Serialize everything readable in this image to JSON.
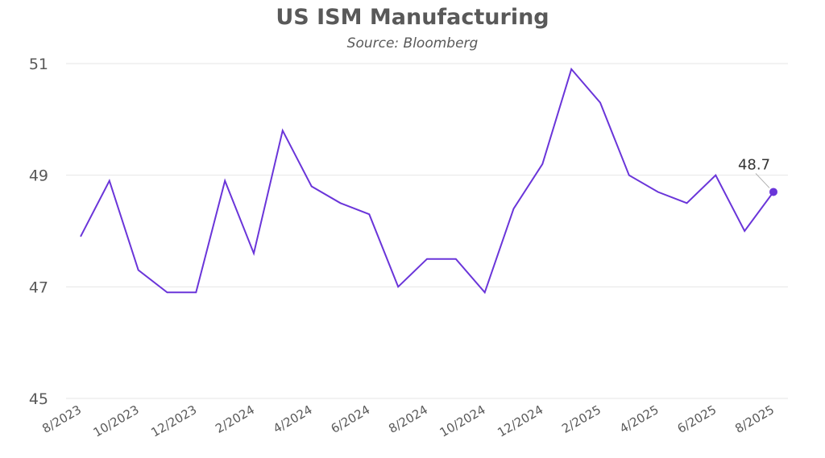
{
  "chart_data": {
    "type": "line",
    "title": "US ISM Manufacturing",
    "subtitle": "Source: Bloomberg",
    "xlabel": "",
    "ylabel": "",
    "ylim": [
      45,
      51
    ],
    "yticks": [
      45,
      47,
      49,
      51
    ],
    "grid": true,
    "legend": "none",
    "x": [
      "8/2023",
      "9/2023",
      "10/2023",
      "11/2023",
      "12/2023",
      "1/2024",
      "2/2024",
      "3/2024",
      "4/2024",
      "5/2024",
      "6/2024",
      "7/2024",
      "8/2024",
      "9/2024",
      "10/2024",
      "11/2024",
      "12/2024",
      "1/2025",
      "2/2025",
      "3/2025",
      "4/2025",
      "5/2025",
      "6/2025",
      "7/2025",
      "8/2025"
    ],
    "xtick_labels": [
      "8/2023",
      "10/2023",
      "12/2023",
      "2/2024",
      "4/2024",
      "6/2024",
      "8/2024",
      "10/2024",
      "12/2024",
      "2/2025",
      "4/2025",
      "6/2025",
      "8/2025"
    ],
    "series": [
      {
        "color": "#6a35d9",
        "values": [
          47.9,
          48.9,
          47.3,
          46.9,
          46.9,
          48.9,
          47.6,
          49.8,
          48.8,
          48.5,
          48.3,
          47.0,
          47.5,
          47.5,
          46.9,
          48.4,
          49.2,
          50.9,
          50.3,
          49.0,
          48.7,
          48.5,
          49.0,
          48.0,
          48.7
        ]
      }
    ],
    "annotations": [
      {
        "label": "48.7",
        "x": "8/2025",
        "y": 48.7
      }
    ]
  }
}
